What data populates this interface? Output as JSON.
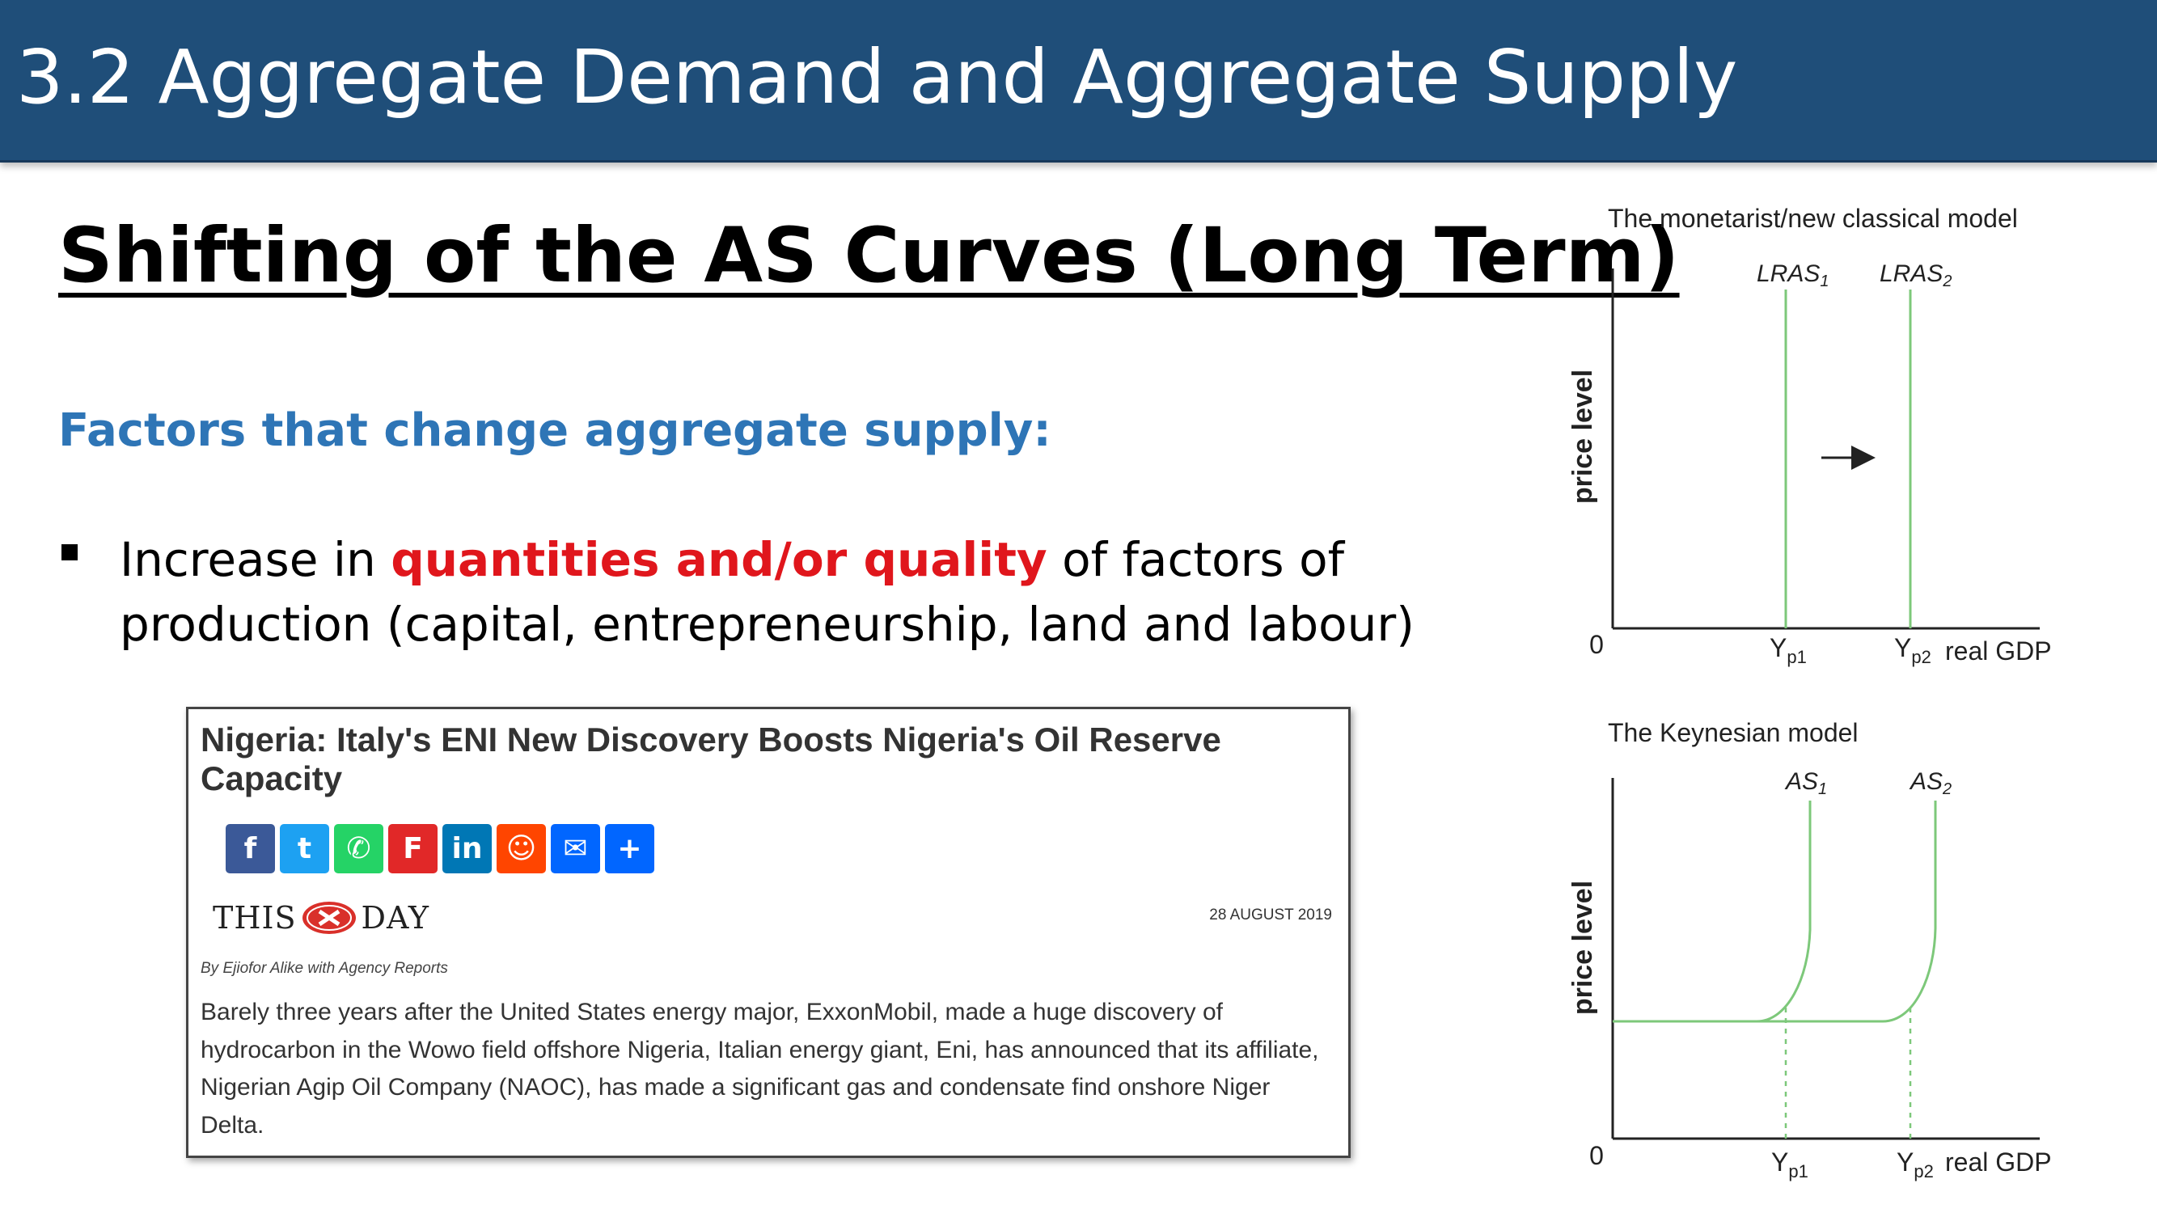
{
  "header": {
    "title": "3.2 Aggregate Demand and Aggregate Supply"
  },
  "heading": "Shifting of the AS Curves (Long Term)",
  "subheading": "Factors that change aggregate supply:",
  "bullet": {
    "pre": "Increase in ",
    "highlight": "quantities and/or quality",
    "post": " of factors of production (capital, entrepreneurship, land and labour)"
  },
  "news": {
    "title": "Nigeria: Italy's ENI New Discovery Boosts Nigeria's Oil Reserve Capacity",
    "share_icons": [
      {
        "name": "facebook-icon",
        "glyph": "f",
        "color": "#3b5998"
      },
      {
        "name": "twitter-icon",
        "glyph": "t",
        "color": "#1da1f2"
      },
      {
        "name": "whatsapp-icon",
        "glyph": "✆",
        "color": "#25d366"
      },
      {
        "name": "flipboard-icon",
        "glyph": "F",
        "color": "#e12828"
      },
      {
        "name": "linkedin-icon",
        "glyph": "in",
        "color": "#0077b5"
      },
      {
        "name": "reddit-icon",
        "glyph": "☺",
        "color": "#ff4500"
      },
      {
        "name": "email-icon",
        "glyph": "✉",
        "color": "#0166ff"
      },
      {
        "name": "share-more-icon",
        "glyph": "+",
        "color": "#0166ff"
      }
    ],
    "logo_left": "THIS",
    "logo_right": "DAY",
    "date": "28 AUGUST 2019",
    "byline": "By Ejiofor Alike with Agency Reports",
    "body": "Barely three years after the United States energy major, ExxonMobil, made a huge discovery of hydrocarbon in the Wowo field offshore Nigeria, Italian energy giant, Eni, has announced that its affiliate, Nigerian Agip Oil Company (NAOC), has made a significant gas and condensate find onshore Niger Delta."
  },
  "diagrams": {
    "monetarist": {
      "title": "The monetarist/new classical model",
      "ylabel": "price level",
      "xlabel": "real GDP",
      "origin": "0",
      "curve1": {
        "name": "LRAS",
        "sub": "1"
      },
      "curve2": {
        "name": "LRAS",
        "sub": "2"
      },
      "x1": {
        "name": "Y",
        "sub": "p1"
      },
      "x2": {
        "name": "Y",
        "sub": "p2"
      }
    },
    "keynesian": {
      "title": "The Keynesian model",
      "ylabel": "price level",
      "xlabel": "real GDP",
      "origin": "0",
      "curve1": {
        "name": "AS",
        "sub": "1"
      },
      "curve2": {
        "name": "AS",
        "sub": "2"
      },
      "x1": {
        "name": "Y",
        "sub": "p1"
      },
      "x2": {
        "name": "Y",
        "sub": "p2"
      }
    },
    "colors": {
      "curve": "#7dc87a",
      "axis": "#222222"
    }
  }
}
